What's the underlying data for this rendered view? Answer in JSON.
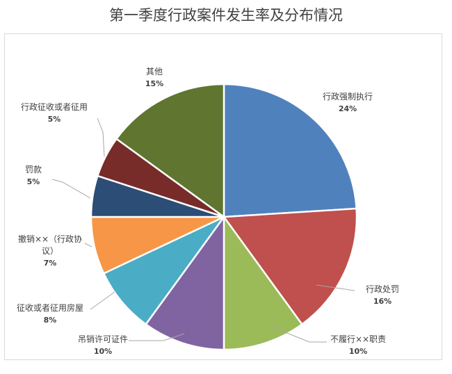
{
  "chart_data": {
    "type": "pie",
    "title": "第一季度行政案件发生率及分布情况",
    "slices": [
      {
        "label": "行政强制执行",
        "pct_label": "24%",
        "value": 24,
        "color": "#4f81bd"
      },
      {
        "label": "行政处罚",
        "pct_label": "16%",
        "value": 16,
        "color": "#c0504d"
      },
      {
        "label": "不履行××职责",
        "pct_label": "10%",
        "value": 10,
        "color": "#9bbb59"
      },
      {
        "label": "吊销许可证件",
        "pct_label": "10%",
        "value": 10,
        "color": "#8064a2"
      },
      {
        "label": "征收或者征用房屋",
        "pct_label": "8%",
        "value": 8,
        "color": "#4bacc6"
      },
      {
        "label_lines": [
          "撤销××（行政协",
          "议）"
        ],
        "pct_label": "7%",
        "value": 7,
        "color": "#f79646"
      },
      {
        "label": "罚款",
        "pct_label": "5%",
        "value": 5,
        "color": "#2c4d75"
      },
      {
        "label": "行政征收或者征用",
        "pct_label": "5%",
        "value": 5,
        "color": "#772c2a"
      },
      {
        "label": "其他",
        "pct_label": "15%",
        "value": 15,
        "color": "#5f7530"
      }
    ]
  }
}
